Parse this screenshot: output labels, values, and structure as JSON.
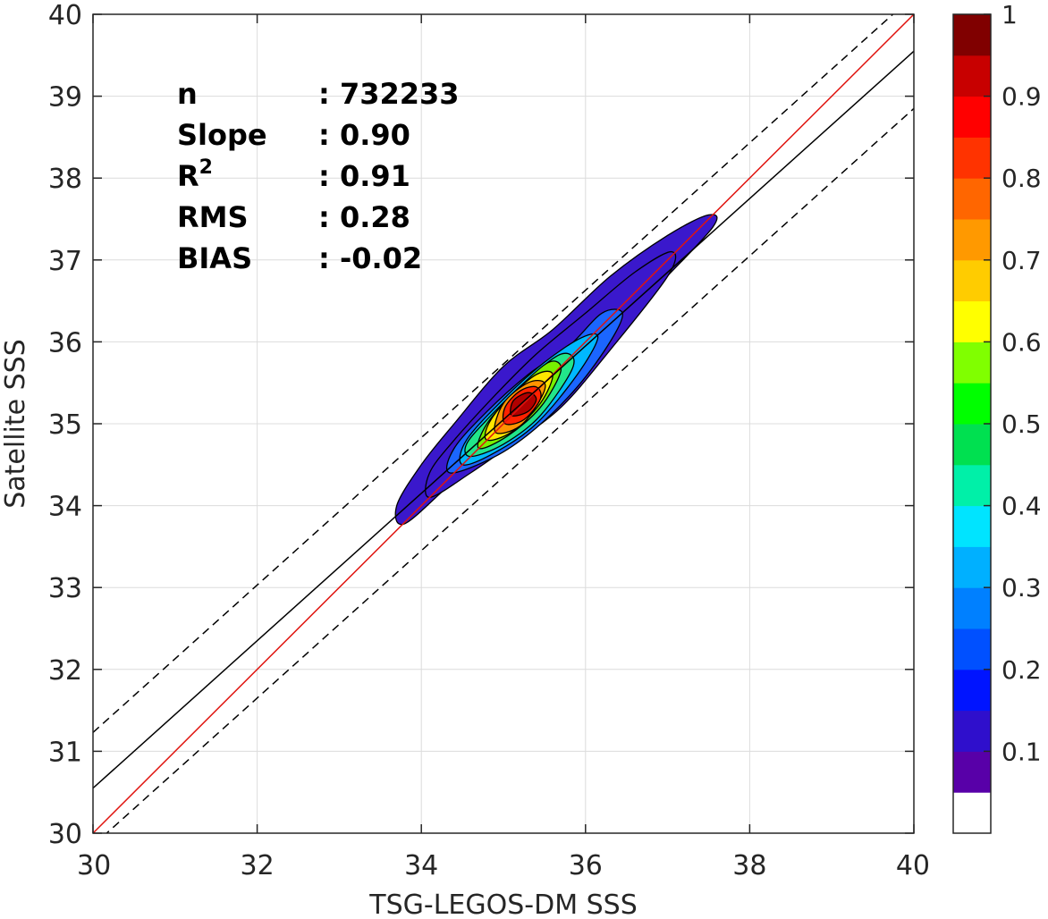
{
  "chart_data": {
    "type": "contour",
    "xlabel": "TSG-LEGOS-DM SSS",
    "ylabel": "Satellite SSS",
    "xlim": [
      30,
      40
    ],
    "ylim": [
      30,
      40
    ],
    "xticks": [
      "30",
      "32",
      "34",
      "36",
      "38",
      "40"
    ],
    "yticks": [
      "30",
      "31",
      "32",
      "33",
      "34",
      "35",
      "36",
      "37",
      "38",
      "39",
      "40"
    ],
    "grid": true,
    "stats": [
      {
        "label": "n",
        "value": ": 732233"
      },
      {
        "label": "Slope",
        "value": ": 0.90"
      },
      {
        "label": "R",
        "sup": "2",
        "value": ": 0.91"
      },
      {
        "label": "RMS",
        "value": ": 0.28"
      },
      {
        "label": "BIAS",
        "value": ": -0.02"
      }
    ],
    "lines": [
      {
        "name": "identity",
        "slope": 1.0,
        "intercept": 0.0,
        "color": "#e0140f",
        "dash": "solid"
      },
      {
        "name": "regression",
        "slope": 0.9,
        "intercept": 3.55,
        "color": "#000000",
        "dash": "solid"
      },
      {
        "name": "upper-bound",
        "slope": 0.9,
        "intercept": 4.23,
        "color": "#000000",
        "dash": "dashed"
      },
      {
        "name": "lower-bound",
        "slope": 0.9,
        "intercept": 2.85,
        "color": "#000000",
        "dash": "dashed"
      }
    ],
    "density_contours": [
      {
        "level": 0.05,
        "color": "#3a18cc",
        "points": [
          [
            33.8,
            33.78
          ],
          [
            34.4,
            34.3
          ],
          [
            35.0,
            34.75
          ],
          [
            35.6,
            35.2
          ],
          [
            36.2,
            35.95
          ],
          [
            36.9,
            36.7
          ],
          [
            37.55,
            37.4
          ],
          [
            37.5,
            37.55
          ],
          [
            37.0,
            37.3
          ],
          [
            36.3,
            36.8
          ],
          [
            35.6,
            36.15
          ],
          [
            35.0,
            35.7
          ],
          [
            34.4,
            35.0
          ],
          [
            34.0,
            34.5
          ],
          [
            33.7,
            34.0
          ]
        ]
      },
      {
        "level": 0.15,
        "color": "#3a18cc",
        "points": [
          [
            34.1,
            34.1
          ],
          [
            34.6,
            34.4
          ],
          [
            35.1,
            34.75
          ],
          [
            35.7,
            35.2
          ],
          [
            36.3,
            35.9
          ],
          [
            37.0,
            36.8
          ],
          [
            37.05,
            37.1
          ],
          [
            36.6,
            36.85
          ],
          [
            36.0,
            36.35
          ],
          [
            35.4,
            35.85
          ],
          [
            34.9,
            35.35
          ],
          [
            34.4,
            34.8
          ],
          [
            34.1,
            34.4
          ]
        ]
      },
      {
        "level": 0.25,
        "color": "#1b66ff",
        "points": [
          [
            34.35,
            34.4
          ],
          [
            34.9,
            34.6
          ],
          [
            35.4,
            34.95
          ],
          [
            35.9,
            35.45
          ],
          [
            36.3,
            36.0
          ],
          [
            36.45,
            36.35
          ],
          [
            36.2,
            36.35
          ],
          [
            35.8,
            35.95
          ],
          [
            35.3,
            35.6
          ],
          [
            34.8,
            35.15
          ],
          [
            34.4,
            34.7
          ]
        ]
      },
      {
        "level": 0.35,
        "color": "#00b8ff",
        "points": [
          [
            34.5,
            34.5
          ],
          [
            34.9,
            34.65
          ],
          [
            35.4,
            35.0
          ],
          [
            35.9,
            35.6
          ],
          [
            36.15,
            36.05
          ],
          [
            35.95,
            36.05
          ],
          [
            35.5,
            35.75
          ],
          [
            35.0,
            35.3
          ],
          [
            34.55,
            34.8
          ]
        ]
      },
      {
        "level": 0.45,
        "color": "#22e58a",
        "points": [
          [
            34.6,
            34.6
          ],
          [
            35.0,
            34.75
          ],
          [
            35.45,
            35.1
          ],
          [
            35.85,
            35.7
          ],
          [
            35.7,
            35.85
          ],
          [
            35.25,
            35.5
          ],
          [
            34.8,
            35.05
          ],
          [
            34.55,
            34.75
          ]
        ]
      },
      {
        "level": 0.55,
        "color": "#78f000",
        "points": [
          [
            34.7,
            34.7
          ],
          [
            35.05,
            34.85
          ],
          [
            35.45,
            35.2
          ],
          [
            35.7,
            35.65
          ],
          [
            35.55,
            35.75
          ],
          [
            35.15,
            35.4
          ],
          [
            34.8,
            35.0
          ]
        ]
      },
      {
        "level": 0.65,
        "color": "#ffe600",
        "points": [
          [
            34.8,
            34.8
          ],
          [
            35.1,
            34.9
          ],
          [
            35.45,
            35.25
          ],
          [
            35.6,
            35.6
          ],
          [
            35.4,
            35.6
          ],
          [
            35.05,
            35.3
          ],
          [
            34.82,
            35.0
          ]
        ]
      },
      {
        "level": 0.75,
        "color": "#ff9400",
        "points": [
          [
            34.9,
            34.9
          ],
          [
            35.2,
            34.97
          ],
          [
            35.45,
            35.3
          ],
          [
            35.5,
            35.5
          ],
          [
            35.3,
            35.5
          ],
          [
            35.0,
            35.25
          ]
        ]
      },
      {
        "level": 0.85,
        "color": "#ff2200",
        "points": [
          [
            35.02,
            35.0
          ],
          [
            35.25,
            35.05
          ],
          [
            35.45,
            35.3
          ],
          [
            35.4,
            35.45
          ],
          [
            35.2,
            35.4
          ],
          [
            35.02,
            35.2
          ]
        ]
      },
      {
        "level": 0.95,
        "color": "#b00000",
        "points": [
          [
            35.1,
            35.1
          ],
          [
            35.3,
            35.15
          ],
          [
            35.4,
            35.3
          ],
          [
            35.3,
            35.38
          ],
          [
            35.12,
            35.28
          ]
        ]
      }
    ],
    "colorbar": {
      "ticks": [
        "0.1",
        "0.2",
        "0.3",
        "0.4",
        "0.5",
        "0.6",
        "0.7",
        "0.8",
        "0.9",
        "1"
      ],
      "colors": [
        "#ffffff",
        "#5800a8",
        "#2f0fcc",
        "#0014ff",
        "#0050ff",
        "#0080ff",
        "#00b0ff",
        "#00e4ff",
        "#00f0a8",
        "#00e050",
        "#00ff00",
        "#80ff00",
        "#ffff00",
        "#ffcc00",
        "#ff9900",
        "#ff6600",
        "#ff3300",
        "#ff0000",
        "#c80000",
        "#800000"
      ]
    }
  }
}
